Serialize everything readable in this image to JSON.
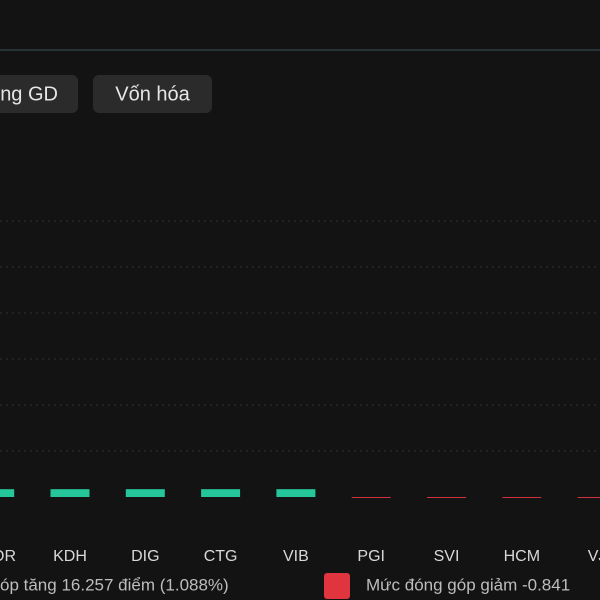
{
  "tabs": [
    "ng GD",
    "Vốn hóa"
  ],
  "chart_data": {
    "type": "bar",
    "categories": [
      "OR",
      "KDH",
      "DIG",
      "CTG",
      "VIB",
      "PGI",
      "SVI",
      "HCM",
      "VJ"
    ],
    "values": [
      0.17,
      0.17,
      0.17,
      0.17,
      0.17,
      -0.02,
      -0.02,
      -0.02,
      -0.02
    ],
    "positive_color": "#25c79a",
    "negative_color": "#e0343f",
    "ylim": [
      -0.5,
      7
    ],
    "yticks": [
      1,
      2,
      3,
      4,
      5,
      6
    ],
    "grid": true,
    "legend": [
      {
        "label": "óp tăng 16.257 điểm (1.088%)",
        "color": "#25c79a"
      },
      {
        "label": "Mức đóng góp giảm -0.841",
        "color": "#e0343f"
      }
    ]
  }
}
